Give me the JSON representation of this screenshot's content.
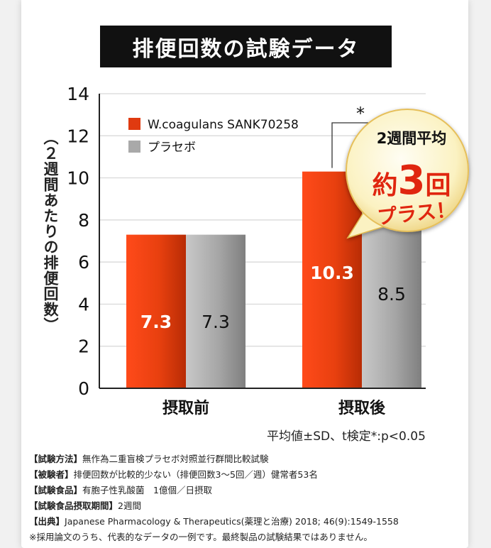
{
  "title": "排便回数の試験データ",
  "chart_data": {
    "type": "bar",
    "categories": [
      "摂取前",
      "摂取後"
    ],
    "series": [
      {
        "name": "W.coagulans SANK70258",
        "values": [
          7.3,
          10.3
        ],
        "color": "#e03a10"
      },
      {
        "name": "プラセボ",
        "values": [
          7.3,
          8.5
        ],
        "color": "#a9a9a9"
      }
    ],
    "ylabel": "（２週間あたりの排便回数）",
    "ylim": [
      0,
      14
    ],
    "yticks": [
      "0",
      "2",
      "4",
      "6",
      "8",
      "10",
      "12",
      "14"
    ],
    "data_labels": [
      [
        "7.3",
        "10.3"
      ],
      [
        "7.3",
        "8.5"
      ]
    ],
    "grid": true,
    "legend": "top-left",
    "significance_marker": "*"
  },
  "badge": {
    "line1": "2週間平均",
    "line2_pre": "約",
    "line2_num": "3",
    "line2_post": "回",
    "line3": "プラス！"
  },
  "stat_note": "平均値±SD、t検定*:p<0.05",
  "notes": [
    {
      "label": "【試験方法】",
      "text": "無作為二重盲検プラセボ対照並行群間比較試験"
    },
    {
      "label": "【被験者】",
      "text": "排便回数が比較的少ない（排便回数3～5回／週）健常者53名"
    },
    {
      "label": "【試験食品】",
      "text": "有胞子性乳酸菌　1億個／日摂取"
    },
    {
      "label": "【試験食品摂取期間】",
      "text": "2週間"
    },
    {
      "label": "【出典】",
      "text": "Japanese Pharmacology & Therapeutics(薬理と治療) 2018; 46(9):1549-1558"
    },
    {
      "label": "",
      "text": "※採用論文のうち、代表的なデータの一例です。最終製品の試験結果ではありません。"
    }
  ]
}
